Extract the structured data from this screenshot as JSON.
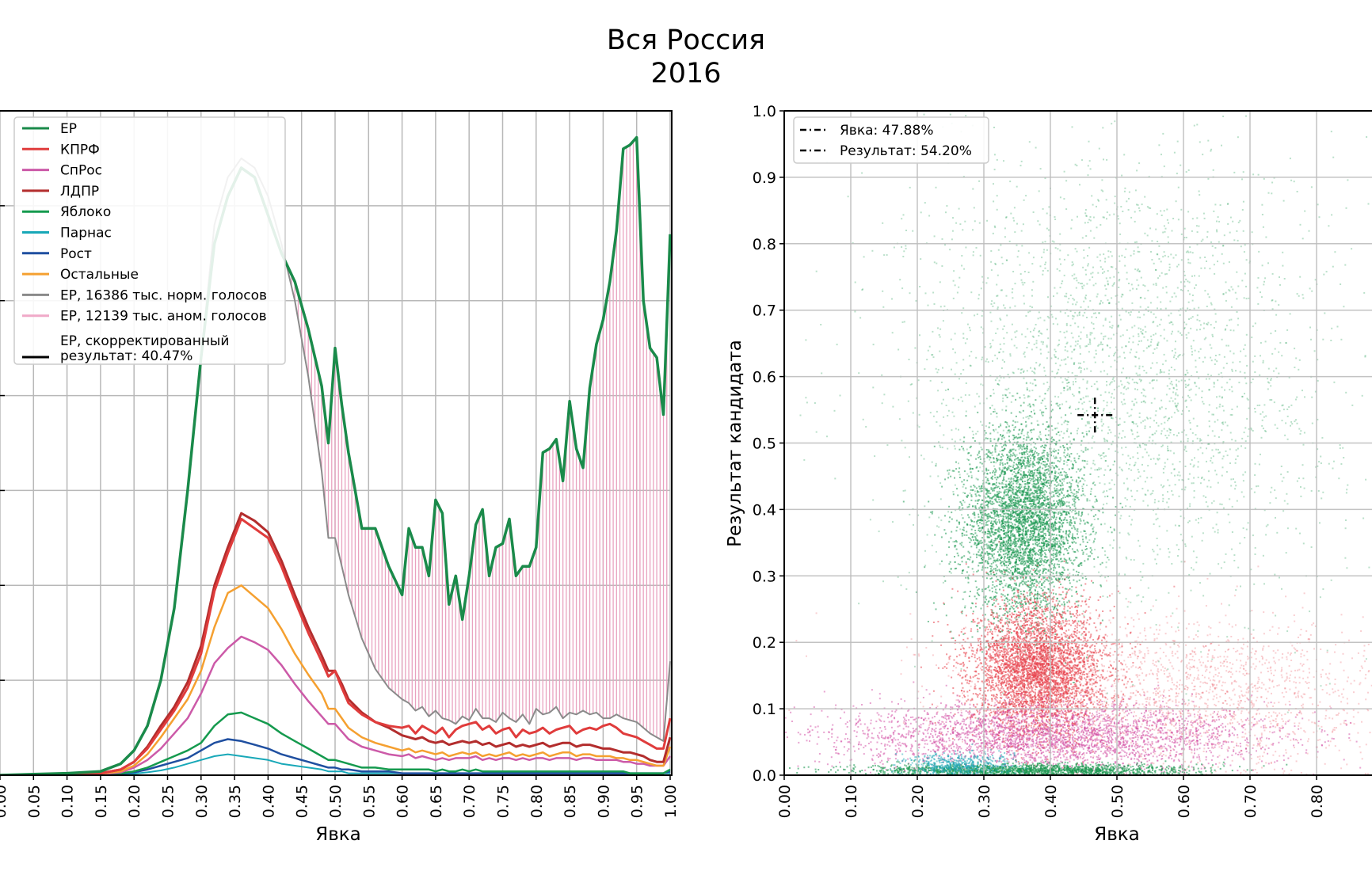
{
  "figure": {
    "title_line1": "Вся Россия",
    "title_line2": "2016"
  },
  "chart_data": [
    {
      "type": "line",
      "xlabel": "Явка",
      "ylabel": "",
      "xlim": [
        0,
        1
      ],
      "ylim": [
        0,
        3.5
      ],
      "x_ticks": [
        "0.00",
        "0.05",
        "0.10",
        "0.15",
        "0.20",
        "0.25",
        "0.30",
        "0.35",
        "0.40",
        "0.45",
        "0.50",
        "0.55",
        "0.60",
        "0.65",
        "0.70",
        "0.75",
        "0.80",
        "0.85",
        "0.90",
        "0.95",
        "1.00"
      ],
      "grid": true,
      "legend_position": "top-left",
      "legend": [
        {
          "label": "ЕР",
          "color": "#1a8a4a",
          "style": "solid"
        },
        {
          "label": "КПРФ",
          "color": "#e03c3c",
          "style": "solid"
        },
        {
          "label": "СпРос",
          "color": "#cc5aa8",
          "style": "solid"
        },
        {
          "label": "ЛДПР",
          "color": "#b32d2d",
          "style": "solid"
        },
        {
          "label": "Яблоко",
          "color": "#159a4e",
          "style": "solid"
        },
        {
          "label": "Парнас",
          "color": "#18a8b8",
          "style": "solid"
        },
        {
          "label": "Рост",
          "color": "#1f4fa0",
          "style": "solid"
        },
        {
          "label": "Остальные",
          "color": "#f5a030",
          "style": "solid"
        },
        {
          "label": "ЕР, 16386 тыс. норм. голосов",
          "color": "#8a8a8a",
          "style": "solid"
        },
        {
          "label": "ЕР, 12139 тыс. аном. голосов",
          "color": "#f0a9c8",
          "style": "solid"
        },
        {
          "label_line1": "ЕР, скорректированный",
          "label_line2": "результат: 40.47%",
          "color": "#000000",
          "style": "solid"
        }
      ],
      "x": [
        0.0,
        0.05,
        0.1,
        0.15,
        0.18,
        0.2,
        0.22,
        0.24,
        0.26,
        0.28,
        0.3,
        0.32,
        0.34,
        0.36,
        0.38,
        0.4,
        0.42,
        0.44,
        0.46,
        0.48,
        0.49,
        0.5,
        0.51,
        0.52,
        0.54,
        0.56,
        0.58,
        0.6,
        0.61,
        0.62,
        0.63,
        0.64,
        0.65,
        0.66,
        0.67,
        0.68,
        0.69,
        0.7,
        0.71,
        0.72,
        0.73,
        0.74,
        0.75,
        0.76,
        0.77,
        0.78,
        0.79,
        0.8,
        0.81,
        0.82,
        0.83,
        0.84,
        0.85,
        0.86,
        0.87,
        0.88,
        0.89,
        0.9,
        0.91,
        0.92,
        0.93,
        0.94,
        0.95,
        0.96,
        0.97,
        0.98,
        0.99,
        1.0
      ],
      "series": [
        {
          "name": "ЕР",
          "color": "#1a8a4a",
          "width": 3.5,
          "values": [
            0,
            0.005,
            0.01,
            0.02,
            0.06,
            0.13,
            0.26,
            0.5,
            0.88,
            1.5,
            2.2,
            2.8,
            3.05,
            3.2,
            3.15,
            2.95,
            2.75,
            2.6,
            2.35,
            2.05,
            1.75,
            2.25,
            1.95,
            1.7,
            1.3,
            1.3,
            1.1,
            0.95,
            1.3,
            1.2,
            1.2,
            1.05,
            1.45,
            1.38,
            0.9,
            1.05,
            0.82,
            1.05,
            1.32,
            1.4,
            1.05,
            1.2,
            1.22,
            1.35,
            1.05,
            1.1,
            1.1,
            1.2,
            1.7,
            1.72,
            1.77,
            1.55,
            1.97,
            1.72,
            1.62,
            2.04,
            2.27,
            2.4,
            2.6,
            2.87,
            3.3,
            3.32,
            3.36,
            2.5,
            2.25,
            2.2,
            1.9,
            2.85
          ]
        },
        {
          "name": "ЕР, 16386 тыс. норм. голосов",
          "color": "#8a8a8a",
          "width": 2,
          "values": [
            0,
            0.005,
            0.01,
            0.02,
            0.06,
            0.13,
            0.26,
            0.5,
            0.88,
            1.5,
            2.2,
            2.9,
            3.15,
            3.25,
            3.2,
            3.05,
            2.8,
            2.5,
            2.1,
            1.6,
            1.25,
            1.25,
            1.1,
            0.95,
            0.72,
            0.56,
            0.46,
            0.4,
            0.38,
            0.34,
            0.36,
            0.31,
            0.34,
            0.3,
            0.29,
            0.27,
            0.31,
            0.29,
            0.35,
            0.3,
            0.3,
            0.28,
            0.33,
            0.3,
            0.28,
            0.32,
            0.27,
            0.35,
            0.32,
            0.33,
            0.36,
            0.3,
            0.33,
            0.32,
            0.34,
            0.32,
            0.33,
            0.3,
            0.3,
            0.32,
            0.3,
            0.29,
            0.28,
            0.25,
            0.22,
            0.2,
            0.18,
            0.6
          ]
        },
        {
          "name": "КПРФ",
          "color": "#e03c3c",
          "width": 3,
          "values": [
            0,
            0.002,
            0.005,
            0.01,
            0.03,
            0.07,
            0.14,
            0.24,
            0.34,
            0.46,
            0.64,
            0.97,
            1.17,
            1.35,
            1.3,
            1.25,
            1.1,
            0.92,
            0.75,
            0.6,
            0.52,
            0.55,
            0.46,
            0.38,
            0.32,
            0.28,
            0.26,
            0.25,
            0.26,
            0.22,
            0.26,
            0.24,
            0.22,
            0.25,
            0.2,
            0.24,
            0.26,
            0.27,
            0.28,
            0.24,
            0.26,
            0.22,
            0.24,
            0.25,
            0.2,
            0.24,
            0.22,
            0.23,
            0.25,
            0.22,
            0.24,
            0.25,
            0.26,
            0.22,
            0.24,
            0.25,
            0.24,
            0.26,
            0.27,
            0.25,
            0.22,
            0.21,
            0.2,
            0.18,
            0.16,
            0.14,
            0.14,
            0.3
          ]
        },
        {
          "name": "ЛДПР",
          "color": "#b32d2d",
          "width": 3,
          "values": [
            0,
            0.002,
            0.005,
            0.01,
            0.03,
            0.07,
            0.15,
            0.26,
            0.36,
            0.49,
            0.68,
            1.0,
            1.2,
            1.38,
            1.34,
            1.28,
            1.13,
            0.95,
            0.78,
            0.63,
            0.55,
            0.55,
            0.48,
            0.4,
            0.33,
            0.28,
            0.25,
            0.21,
            0.2,
            0.19,
            0.2,
            0.18,
            0.17,
            0.18,
            0.16,
            0.17,
            0.18,
            0.17,
            0.18,
            0.16,
            0.17,
            0.15,
            0.16,
            0.17,
            0.15,
            0.16,
            0.15,
            0.16,
            0.17,
            0.15,
            0.16,
            0.17,
            0.17,
            0.15,
            0.16,
            0.16,
            0.15,
            0.14,
            0.14,
            0.13,
            0.12,
            0.12,
            0.11,
            0.1,
            0.08,
            0.07,
            0.07,
            0.2
          ]
        },
        {
          "name": "Остальные",
          "color": "#f5a030",
          "width": 2.5,
          "values": [
            0,
            0.002,
            0.005,
            0.008,
            0.02,
            0.05,
            0.11,
            0.2,
            0.3,
            0.4,
            0.55,
            0.78,
            0.96,
            1.0,
            0.94,
            0.88,
            0.77,
            0.64,
            0.53,
            0.43,
            0.35,
            0.35,
            0.3,
            0.25,
            0.2,
            0.17,
            0.15,
            0.13,
            0.14,
            0.12,
            0.13,
            0.12,
            0.11,
            0.12,
            0.1,
            0.11,
            0.12,
            0.11,
            0.12,
            0.1,
            0.11,
            0.1,
            0.11,
            0.12,
            0.1,
            0.11,
            0.1,
            0.11,
            0.12,
            0.1,
            0.11,
            0.12,
            0.12,
            0.1,
            0.11,
            0.11,
            0.1,
            0.1,
            0.1,
            0.09,
            0.09,
            0.08,
            0.08,
            0.07,
            0.06,
            0.05,
            0.05,
            0.15
          ]
        },
        {
          "name": "СпРос",
          "color": "#cc5aa8",
          "width": 2.5,
          "values": [
            0,
            0.001,
            0.003,
            0.005,
            0.015,
            0.04,
            0.08,
            0.14,
            0.22,
            0.3,
            0.43,
            0.59,
            0.67,
            0.73,
            0.7,
            0.66,
            0.58,
            0.48,
            0.39,
            0.31,
            0.27,
            0.27,
            0.23,
            0.19,
            0.15,
            0.13,
            0.11,
            0.1,
            0.11,
            0.09,
            0.1,
            0.09,
            0.08,
            0.09,
            0.08,
            0.09,
            0.09,
            0.09,
            0.1,
            0.08,
            0.09,
            0.08,
            0.09,
            0.09,
            0.08,
            0.09,
            0.08,
            0.09,
            0.09,
            0.08,
            0.09,
            0.09,
            0.09,
            0.08,
            0.09,
            0.09,
            0.08,
            0.08,
            0.08,
            0.08,
            0.07,
            0.07,
            0.06,
            0.06,
            0.05,
            0.05,
            0.05,
            0.1
          ]
        },
        {
          "name": "Яблоко",
          "color": "#159a4e",
          "width": 2.5,
          "values": [
            0,
            0.001,
            0.002,
            0.004,
            0.01,
            0.02,
            0.04,
            0.07,
            0.1,
            0.13,
            0.17,
            0.26,
            0.32,
            0.33,
            0.3,
            0.27,
            0.22,
            0.18,
            0.14,
            0.1,
            0.08,
            0.08,
            0.07,
            0.06,
            0.04,
            0.04,
            0.03,
            0.03,
            0.03,
            0.03,
            0.03,
            0.03,
            0.02,
            0.03,
            0.02,
            0.02,
            0.03,
            0.02,
            0.03,
            0.02,
            0.02,
            0.02,
            0.02,
            0.02,
            0.02,
            0.02,
            0.02,
            0.02,
            0.02,
            0.02,
            0.02,
            0.02,
            0.02,
            0.02,
            0.02,
            0.02,
            0.02,
            0.02,
            0.02,
            0.02,
            0.02,
            0.01,
            0.01,
            0.01,
            0.01,
            0.01,
            0.01,
            0.03
          ]
        },
        {
          "name": "Рост",
          "color": "#1f4fa0",
          "width": 2.5,
          "values": [
            0,
            0.001,
            0.002,
            0.003,
            0.008,
            0.015,
            0.03,
            0.05,
            0.07,
            0.09,
            0.13,
            0.17,
            0.19,
            0.18,
            0.16,
            0.14,
            0.11,
            0.09,
            0.07,
            0.05,
            0.04,
            0.04,
            0.03,
            0.03,
            0.02,
            0.02,
            0.02,
            0.01,
            0.01,
            0.01,
            0.01,
            0.01,
            0.01,
            0.01,
            0.01,
            0.01,
            0.01,
            0.01,
            0.01,
            0.01,
            0.01,
            0.01,
            0.01,
            0.01,
            0.01,
            0.01,
            0.01,
            0.01,
            0.01,
            0.01,
            0.01,
            0.01,
            0.01,
            0.01,
            0.01,
            0.01,
            0.01,
            0.01,
            0.01,
            0.01,
            0.01,
            0.01,
            0.01,
            0.01,
            0.01,
            0.01,
            0.01,
            0.02
          ]
        },
        {
          "name": "Парнас",
          "color": "#18a8b8",
          "width": 2,
          "values": [
            0,
            0.001,
            0.001,
            0.002,
            0.004,
            0.008,
            0.015,
            0.025,
            0.04,
            0.06,
            0.08,
            0.1,
            0.11,
            0.1,
            0.09,
            0.08,
            0.06,
            0.05,
            0.04,
            0.03,
            0.02,
            0.02,
            0.02,
            0.01,
            0.01,
            0.01,
            0.01,
            0.01,
            0.01,
            0.01,
            0.01,
            0.01,
            0.01,
            0.01,
            0.01,
            0.01,
            0.01,
            0.01,
            0.01,
            0.01,
            0.01,
            0.01,
            0.01,
            0.01,
            0.01,
            0.01,
            0.01,
            0.01,
            0.01,
            0.01,
            0.01,
            0.01,
            0.01,
            0.01,
            0.01,
            0.01,
            0.01,
            0.01,
            0.01,
            0.01,
            0.01,
            0.01,
            0.01,
            0.01,
            0.01,
            0.01,
            0.01,
            0.01
          ]
        }
      ]
    },
    {
      "type": "scatter",
      "xlabel": "Явка",
      "ylabel": "Результат кандидата",
      "xlim": [
        0,
        0.9
      ],
      "ylim": [
        0,
        1
      ],
      "x_ticks": [
        "0.00",
        "0.10",
        "0.20",
        "0.30",
        "0.40",
        "0.50",
        "0.60",
        "0.70",
        "0.80"
      ],
      "y_ticks": [
        "0.0",
        "0.1",
        "0.2",
        "0.3",
        "0.4",
        "0.5",
        "0.6",
        "0.7",
        "0.8",
        "0.9",
        "1.0"
      ],
      "grid": true,
      "legend_position": "top-left",
      "legend": [
        {
          "label": "Явка: 47.88%",
          "color": "#000000",
          "style": "dashdot"
        },
        {
          "label": "Результат: 54.20%",
          "color": "#000000",
          "style": "dashdot"
        }
      ],
      "crosshair": {
        "x": 0.4788,
        "y": 0.542
      },
      "clusters": [
        {
          "party": "ЕР",
          "color": "#1a9850",
          "center": [
            0.36,
            0.38
          ],
          "spread": [
            0.045,
            0.07
          ],
          "alpha": 0.55
        },
        {
          "party": "ЕР",
          "color": "#1a9850",
          "center": [
            0.5,
            0.6
          ],
          "spread": [
            0.16,
            0.17
          ],
          "alpha": 0.3
        },
        {
          "party": "КПРФ",
          "color": "#e8404a",
          "center": [
            0.38,
            0.16
          ],
          "spread": [
            0.05,
            0.05
          ],
          "alpha": 0.55
        },
        {
          "party": "КПРФ",
          "color": "#e8404a",
          "center": [
            0.6,
            0.12
          ],
          "spread": [
            0.16,
            0.06
          ],
          "alpha": 0.25
        },
        {
          "party": "СпРос",
          "color": "#d24aa2",
          "center": [
            0.4,
            0.06
          ],
          "spread": [
            0.16,
            0.025
          ],
          "alpha": 0.5
        },
        {
          "party": "Яблоко",
          "color": "#1a9850",
          "center": [
            0.36,
            0.008
          ],
          "spread": [
            0.12,
            0.005
          ],
          "alpha": 0.6
        },
        {
          "party": "Парнас",
          "color": "#20a8b8",
          "center": [
            0.26,
            0.015
          ],
          "spread": [
            0.04,
            0.01
          ],
          "alpha": 0.5
        }
      ]
    }
  ]
}
